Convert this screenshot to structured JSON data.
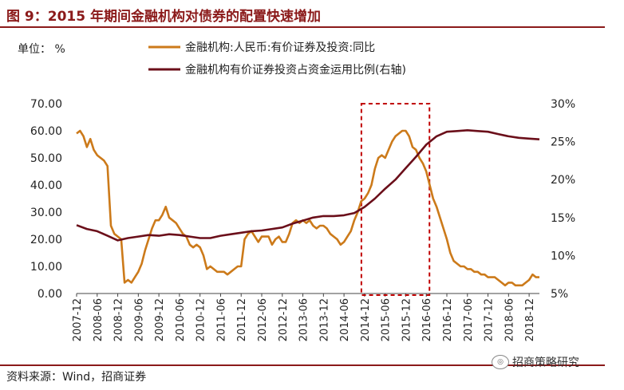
{
  "figure": {
    "title": "图 9：2015 年期间金融机构对债券的配置快速增加",
    "source": "资料来源：Wind，招商证券",
    "watermark": "招商策略研究"
  },
  "chart_data": {
    "type": "line",
    "unit_label": "单位：  %",
    "x_ticks": [
      "2007-12",
      "2008-06",
      "2008-12",
      "2009-06",
      "2009-12",
      "2010-06",
      "2010-12",
      "2011-06",
      "2011-12",
      "2012-06",
      "2012-12",
      "2013-06",
      "2013-12",
      "2014-06",
      "2014-12",
      "2015-06",
      "2015-12",
      "2016-06",
      "2016-12",
      "2017-06",
      "2017-12",
      "2018-06",
      "2018-12"
    ],
    "y_left": {
      "min": 0,
      "max": 70,
      "ticks": [
        "0.00",
        "10.00",
        "20.00",
        "30.00",
        "40.00",
        "50.00",
        "60.00",
        "70.00"
      ]
    },
    "y_right": {
      "min": 5,
      "max": 30,
      "ticks": [
        "5%",
        "10%",
        "15%",
        "20%",
        "25%",
        "30%"
      ]
    },
    "highlight_range": [
      "2014-12",
      "2016-06"
    ],
    "highlight_color": "#c00000",
    "grid": false,
    "legend_position": "top-center",
    "series": [
      {
        "name": "金融机构:人民币:有价证券及投资:同比",
        "axis": "left",
        "color": "#cc7a1a",
        "x": [
          "2007-12",
          "2008-01",
          "2008-02",
          "2008-03",
          "2008-04",
          "2008-05",
          "2008-06",
          "2008-07",
          "2008-08",
          "2008-09",
          "2008-10",
          "2008-11",
          "2008-12",
          "2009-01",
          "2009-02",
          "2009-03",
          "2009-04",
          "2009-05",
          "2009-06",
          "2009-07",
          "2009-08",
          "2009-09",
          "2009-10",
          "2009-11",
          "2009-12",
          "2010-01",
          "2010-02",
          "2010-03",
          "2010-04",
          "2010-05",
          "2010-06",
          "2010-07",
          "2010-08",
          "2010-09",
          "2010-10",
          "2010-11",
          "2010-12",
          "2011-01",
          "2011-02",
          "2011-03",
          "2011-04",
          "2011-05",
          "2011-06",
          "2011-07",
          "2011-08",
          "2011-09",
          "2011-10",
          "2011-11",
          "2011-12",
          "2012-01",
          "2012-02",
          "2012-03",
          "2012-04",
          "2012-05",
          "2012-06",
          "2012-07",
          "2012-08",
          "2012-09",
          "2012-10",
          "2012-11",
          "2012-12",
          "2013-01",
          "2013-02",
          "2013-03",
          "2013-04",
          "2013-05",
          "2013-06",
          "2013-07",
          "2013-08",
          "2013-09",
          "2013-10",
          "2013-11",
          "2013-12",
          "2014-01",
          "2014-02",
          "2014-03",
          "2014-04",
          "2014-05",
          "2014-06",
          "2014-07",
          "2014-08",
          "2014-09",
          "2014-10",
          "2014-11",
          "2014-12",
          "2015-01",
          "2015-02",
          "2015-03",
          "2015-04",
          "2015-05",
          "2015-06",
          "2015-07",
          "2015-08",
          "2015-09",
          "2015-10",
          "2015-11",
          "2015-12",
          "2016-01",
          "2016-02",
          "2016-03",
          "2016-04",
          "2016-05",
          "2016-06",
          "2016-07",
          "2016-08",
          "2016-09",
          "2016-10",
          "2016-11",
          "2016-12",
          "2017-01",
          "2017-02",
          "2017-03",
          "2017-04",
          "2017-05",
          "2017-06",
          "2017-07",
          "2017-08",
          "2017-09",
          "2017-10",
          "2017-11",
          "2017-12",
          "2018-01",
          "2018-02",
          "2018-03",
          "2018-04",
          "2018-05",
          "2018-06",
          "2018-07",
          "2018-08",
          "2018-09",
          "2018-10",
          "2018-11",
          "2018-12",
          "2019-01",
          "2019-02",
          "2019-03"
        ],
        "values": [
          59,
          60,
          58,
          54,
          57,
          53,
          51,
          50,
          49,
          47,
          25,
          22,
          21,
          20,
          4,
          5,
          4,
          6,
          8,
          11,
          16,
          20,
          24,
          27,
          27,
          29,
          32,
          28,
          27,
          26,
          24,
          22,
          21,
          18,
          17,
          18,
          17,
          14,
          9,
          10,
          9,
          8,
          8,
          8,
          7,
          8,
          9,
          10,
          10,
          20,
          22,
          23,
          21,
          19,
          21,
          21,
          21,
          18,
          20,
          21,
          19,
          19,
          22,
          26,
          27,
          26,
          27,
          26,
          27,
          25,
          24,
          25,
          25,
          24,
          22,
          21,
          20,
          18,
          19,
          21,
          23,
          27,
          30,
          34,
          35,
          37,
          40,
          46,
          50,
          51,
          50,
          53,
          56,
          58,
          59,
          60,
          60,
          58,
          54,
          53,
          50,
          48,
          45,
          40,
          35,
          32,
          28,
          24,
          20,
          15,
          12,
          11,
          10,
          10,
          9,
          9,
          8,
          8,
          7,
          7,
          6,
          6,
          6,
          5,
          4,
          3,
          4,
          4,
          3,
          3,
          3,
          4,
          5,
          7,
          6,
          6
        ],
        "values_note": ""
      },
      {
        "name": "金融机构有价证券投资占资金运用比例(右轴)",
        "axis": "right",
        "color": "#6b0f1a",
        "x": [
          "2007-12",
          "2008-03",
          "2008-06",
          "2008-09",
          "2008-12",
          "2009-03",
          "2009-06",
          "2009-09",
          "2009-12",
          "2010-03",
          "2010-06",
          "2010-09",
          "2010-12",
          "2011-03",
          "2011-06",
          "2011-09",
          "2011-12",
          "2012-03",
          "2012-06",
          "2012-09",
          "2012-12",
          "2013-03",
          "2013-06",
          "2013-09",
          "2013-12",
          "2014-03",
          "2014-06",
          "2014-09",
          "2014-12",
          "2015-03",
          "2015-06",
          "2015-09",
          "2015-12",
          "2016-03",
          "2016-06",
          "2016-09",
          "2016-12",
          "2017-03",
          "2017-06",
          "2017-09",
          "2017-12",
          "2018-03",
          "2018-06",
          "2018-09",
          "2018-12",
          "2019-03"
        ],
        "values": [
          14.0,
          13.5,
          13.2,
          12.6,
          12.0,
          12.3,
          12.5,
          12.7,
          12.6,
          12.8,
          12.7,
          12.5,
          12.3,
          12.3,
          12.6,
          12.8,
          13.0,
          13.2,
          13.3,
          13.5,
          13.7,
          14.2,
          14.6,
          15.0,
          15.2,
          15.2,
          15.3,
          15.6,
          16.4,
          17.5,
          18.8,
          20.0,
          21.5,
          23.0,
          24.6,
          25.7,
          26.3,
          26.4,
          26.5,
          26.4,
          26.3,
          26.0,
          25.7,
          25.5,
          25.4,
          25.3
        ],
        "values_note": ""
      }
    ]
  }
}
